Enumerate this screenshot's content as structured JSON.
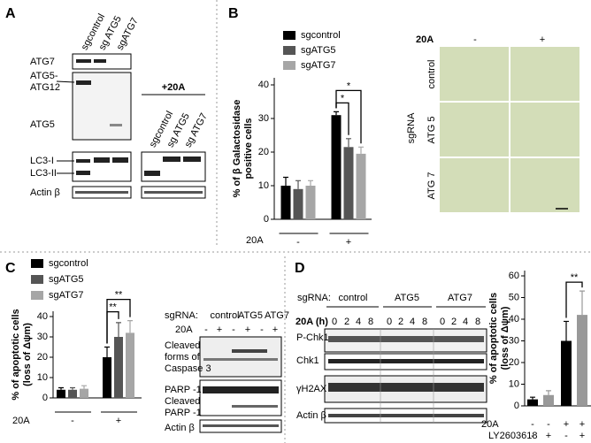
{
  "panel_labels": [
    "A",
    "B",
    "C",
    "D"
  ],
  "panel_a": {
    "lanes": [
      "sgcontrol",
      "sg ATG5",
      "sgATG7"
    ],
    "treated_label": "+20A",
    "treated_lanes": [
      "sgcontrol",
      "sg ATG5",
      "sg ATG7"
    ],
    "bands": [
      "ATG7",
      "ATG5-",
      "ATG12",
      "ATG5",
      "LC3-I",
      "LC3-II",
      "Actin β"
    ]
  },
  "panel_b_images": {
    "treatment": "20A",
    "columns": [
      "-",
      "+"
    ],
    "group": "sgRNA",
    "rows": [
      "control",
      "ATG 5",
      "ATG 7"
    ]
  },
  "panel_c_blot": {
    "sgrna": "sgRNA:",
    "groups": [
      "control",
      "ATG5",
      "ATG7"
    ],
    "treatment": "20A",
    "lanes": [
      "-",
      "+",
      "-",
      "+",
      "-",
      "+"
    ],
    "bands": [
      "Cleaved",
      "forms of",
      "Caspase 3",
      "PARP -1",
      "Cleaved",
      "PARP -1",
      "Actin β"
    ]
  },
  "panel_d_blot": {
    "sgrna": "sgRNA:",
    "groups": [
      "control",
      "ATG5",
      "ATG7"
    ],
    "treatment": "20A (h)",
    "timepoints": [
      0,
      2,
      4,
      8,
      0,
      2,
      4,
      8,
      0,
      2,
      4,
      8
    ],
    "bands": [
      "P-Chk1",
      "Chk1",
      "γH2AX",
      "Actin β"
    ]
  },
  "chart_data": [
    {
      "type": "bar",
      "ylabel": [
        "% of β Galactosidase",
        "positive cells"
      ],
      "xlabel": "20A",
      "categories": [
        "-",
        "+"
      ],
      "series": [
        {
          "name": "sgcontrol",
          "color": "#000000",
          "values": [
            10,
            31
          ],
          "errors": [
            2.5,
            1
          ]
        },
        {
          "name": "sgATG5",
          "color": "#555555",
          "values": [
            9,
            21.5
          ],
          "errors": [
            2.5,
            2.5
          ]
        },
        {
          "name": "sgATG7",
          "color": "#a6a6a6",
          "values": [
            10,
            19.5
          ],
          "errors": [
            1.5,
            2
          ]
        }
      ],
      "significance": [
        {
          "label": "*",
          "category": 1,
          "series": [
            0,
            1
          ]
        },
        {
          "label": "*",
          "category": 1,
          "series": [
            0,
            2
          ]
        }
      ],
      "ylim": [
        0,
        40
      ],
      "yticks": [
        0,
        10,
        20,
        30,
        40
      ]
    },
    {
      "type": "bar",
      "ylabel": [
        "% of apoptotic cells",
        "(loss of Δψm)"
      ],
      "xlabel": "20A",
      "categories": [
        "-",
        "+"
      ],
      "series": [
        {
          "name": "sgcontrol",
          "color": "#000000",
          "values": [
            4,
            20
          ],
          "errors": [
            1,
            5
          ]
        },
        {
          "name": "sgATG5",
          "color": "#555555",
          "values": [
            4,
            30
          ],
          "errors": [
            1,
            7
          ]
        },
        {
          "name": "sgATG7",
          "color": "#a6a6a6",
          "values": [
            4.5,
            32
          ],
          "errors": [
            1.5,
            6
          ]
        }
      ],
      "significance": [
        {
          "label": "**",
          "category": 1,
          "series": [
            0,
            1
          ]
        },
        {
          "label": "**",
          "category": 1,
          "series": [
            0,
            2
          ]
        }
      ],
      "ylim": [
        0,
        40
      ],
      "yticks": [
        0,
        10,
        20,
        30,
        40
      ]
    },
    {
      "type": "bar",
      "ylabel": [
        "% of apoptotic cells",
        "(loss of Δψm)"
      ],
      "values": [
        3,
        5,
        30,
        42
      ],
      "errors": [
        1,
        2,
        9,
        11
      ],
      "colors": [
        "#000000",
        "#999999",
        "#000000",
        "#999999"
      ],
      "conditions": [
        {
          "name": "20A",
          "marks": [
            "-",
            "-",
            "+",
            "+"
          ]
        },
        {
          "name": "LY2603618",
          "marks": [
            "-",
            "+",
            "-",
            "+"
          ]
        }
      ],
      "significance": [
        {
          "label": "**",
          "bars": [
            2,
            3
          ]
        }
      ],
      "ylim": [
        0,
        60
      ],
      "yticks": [
        0,
        10,
        20,
        30,
        40,
        50,
        60
      ]
    }
  ]
}
